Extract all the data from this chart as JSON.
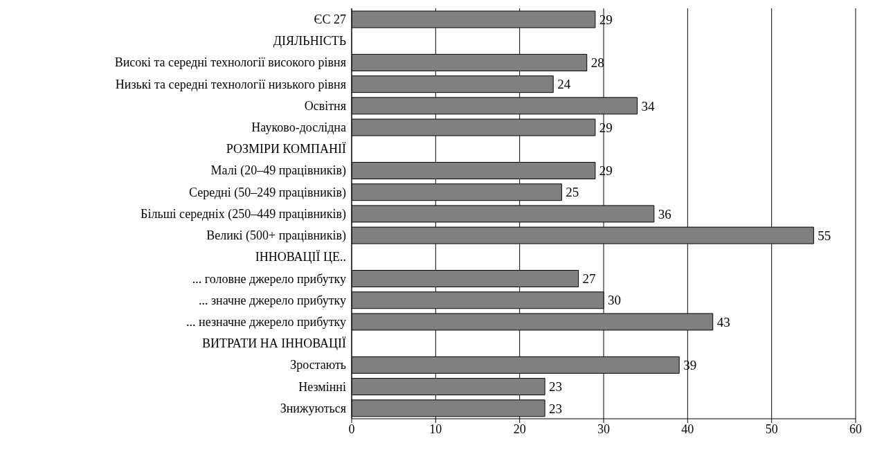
{
  "chart_data": {
    "type": "bar",
    "orientation": "horizontal",
    "categories": [
      "ЄС 27",
      "ДІЯЛЬНІСТЬ",
      "Високі та середні технології  високого рівня",
      "Низькі та середні технології  низького рівня",
      "Освітня",
      "Науково-дослідна",
      "РОЗМІРИ КОМПАНІЇ",
      "Малі (20–49 працівників)",
      "Середні (50–249 працівників)",
      "Більші середніх  (250–449 працівників)",
      "Великі (500+ працівників)",
      "ІННОВАЦІЇ ЦЕ..",
      "... головне джерело прибутку",
      "... значне джерело прибутку",
      "... незначне джерело прибутку",
      "ВИТРАТИ НА ІННОВАЦІЇ",
      "Зростають",
      "Незмінні",
      "Знижуються"
    ],
    "values": [
      29,
      null,
      28,
      24,
      34,
      29,
      null,
      29,
      25,
      36,
      55,
      null,
      27,
      30,
      43,
      null,
      39,
      23,
      23
    ],
    "color": "#808080",
    "xlim": [
      0,
      60
    ],
    "xticks": [
      0,
      10,
      20,
      30,
      40,
      50,
      60
    ],
    "grid": "x",
    "data_labels": true
  }
}
